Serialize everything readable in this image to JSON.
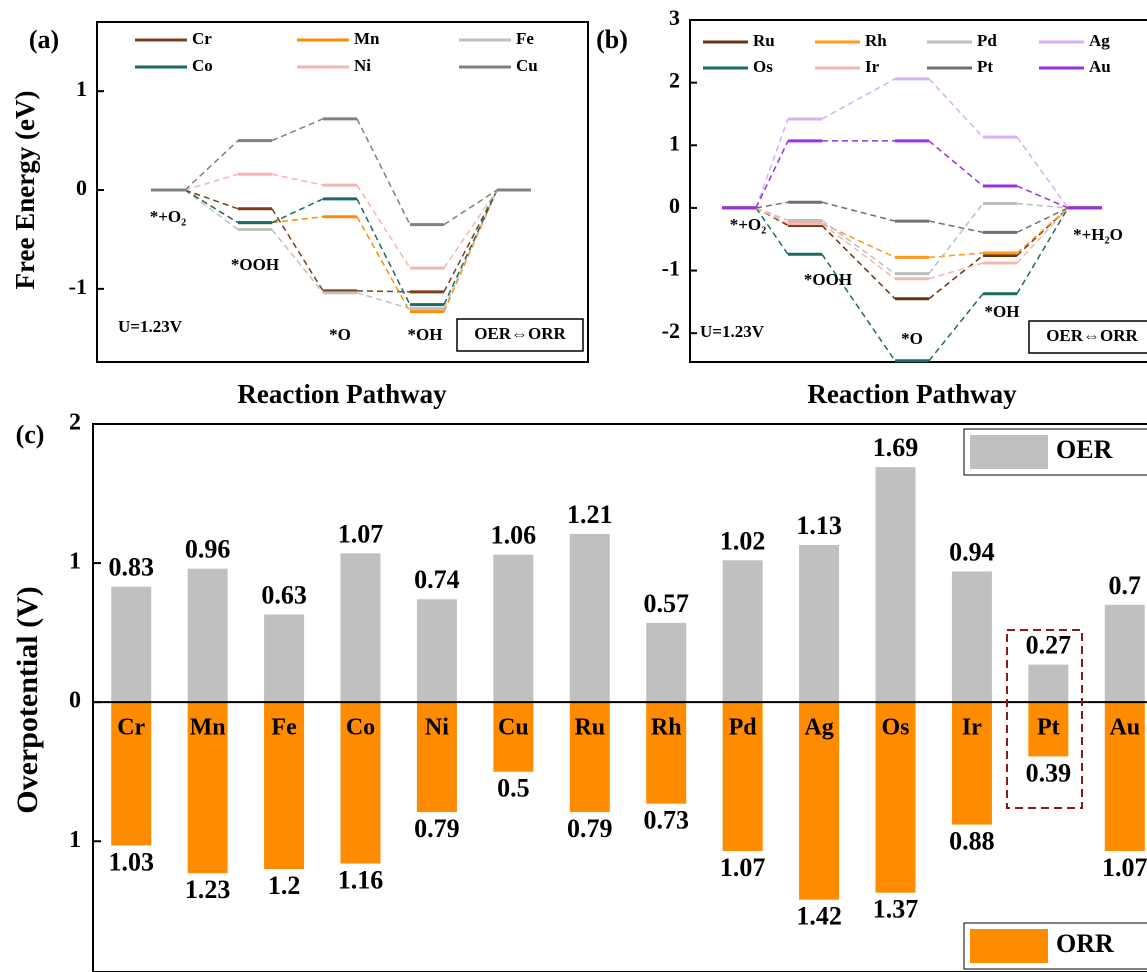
{
  "chart_data": [
    {
      "type": "energy_diagram",
      "panel": "(a)",
      "ylabel": "Free Energy (eV)",
      "xlabel": "Reaction Pathway",
      "categories": [
        "*+O₂",
        "*OOH",
        "*O",
        "*OH",
        null
      ],
      "series": [
        {
          "name": "Cr",
          "color": "#7b3f1a",
          "values": [
            0,
            -0.19,
            -1.02,
            -1.03,
            0
          ]
        },
        {
          "name": "Mn",
          "color": "#ff8c00",
          "values": [
            0,
            -0.33,
            -0.27,
            -1.23,
            0
          ]
        },
        {
          "name": "Fe",
          "color": "#c0c0c0",
          "values": [
            0,
            -0.4,
            -1.04,
            -1.2,
            0
          ]
        },
        {
          "name": "Co",
          "color": "#1a6b63",
          "values": [
            0,
            -0.33,
            -0.09,
            -1.16,
            0
          ]
        },
        {
          "name": "Ni",
          "color": "#f5b5b0",
          "values": [
            0,
            0.16,
            0.05,
            -0.79,
            0
          ]
        },
        {
          "name": "Cu",
          "color": "#808080",
          "values": [
            0,
            0.5,
            0.72,
            -0.35,
            0
          ]
        }
      ],
      "ylim": [
        -1.74,
        1.7
      ],
      "yticks": [
        -1,
        0,
        1
      ],
      "annotations": [
        "U=1.23V",
        "OER⇔ORR"
      ]
    },
    {
      "type": "energy_diagram",
      "panel": "(b)",
      "xlabel": "Reaction Pathway",
      "categories": [
        "*+O₂",
        "*OOH",
        "*O",
        "*OH",
        "*+H₂O"
      ],
      "series": [
        {
          "name": "Ru",
          "color": "#6b3410",
          "values": [
            0,
            -0.28,
            -1.45,
            -0.76,
            0
          ]
        },
        {
          "name": "Rh",
          "color": "#ff9a1a",
          "values": [
            0,
            -0.25,
            -0.79,
            -0.72,
            0
          ]
        },
        {
          "name": "Pd",
          "color": "#bdbdbd",
          "values": [
            0,
            -0.2,
            -1.05,
            0.07,
            0
          ]
        },
        {
          "name": "Ag",
          "color": "#d6b0f0",
          "values": [
            0,
            1.42,
            2.06,
            1.13,
            0
          ]
        },
        {
          "name": "Os",
          "color": "#1a6b63",
          "values": [
            0,
            -0.74,
            -2.44,
            -1.37,
            0
          ]
        },
        {
          "name": "Ir",
          "color": "#f5b5b0",
          "values": [
            0,
            -0.25,
            -1.13,
            -0.88,
            0
          ]
        },
        {
          "name": "Pt",
          "color": "#707070",
          "values": [
            0,
            0.09,
            -0.21,
            -0.39,
            0
          ]
        },
        {
          "name": "Au",
          "color": "#9b30e0",
          "values": [
            0,
            1.07,
            1.07,
            0.35,
            0
          ]
        }
      ],
      "ylim": [
        -2.46,
        3
      ],
      "yticks": [
        -2,
        -1,
        0,
        1,
        2,
        3
      ],
      "annotations": [
        "U=1.23V",
        "OER⇔ORR"
      ]
    },
    {
      "type": "bar",
      "panel": "(c)",
      "ylabel": "Overpotential (V)",
      "categories": [
        "Cr",
        "Mn",
        "Fe",
        "Co",
        "Ni",
        "Cu",
        "Ru",
        "Rh",
        "Pd",
        "Ag",
        "Os",
        "Ir",
        "Pt",
        "Au"
      ],
      "series": [
        {
          "name": "OER",
          "color": "#c0c0c0",
          "values": [
            0.83,
            0.96,
            0.63,
            1.07,
            0.74,
            1.06,
            1.21,
            0.57,
            1.02,
            1.13,
            1.69,
            0.94,
            0.27,
            0.7
          ]
        },
        {
          "name": "ORR",
          "color": "#ff8c00",
          "values": [
            -1.03,
            -1.23,
            -1.2,
            -1.16,
            -0.79,
            -0.5,
            -0.79,
            -0.73,
            -1.07,
            -1.42,
            -1.37,
            -0.88,
            -0.39,
            -1.07
          ],
          "value_labels": [
            "1.03",
            "1.23",
            "1.2",
            "1.16",
            "0.79",
            "0.5",
            "0.79",
            "0.73",
            "1.07",
            "1.42",
            "1.37",
            "0.88",
            "0.39",
            "1.07"
          ]
        }
      ],
      "ylim": [
        -1.94,
        2
      ],
      "yticks": [
        {
          "value": -1,
          "label": "1"
        },
        0,
        1,
        2
      ]
    }
  ]
}
